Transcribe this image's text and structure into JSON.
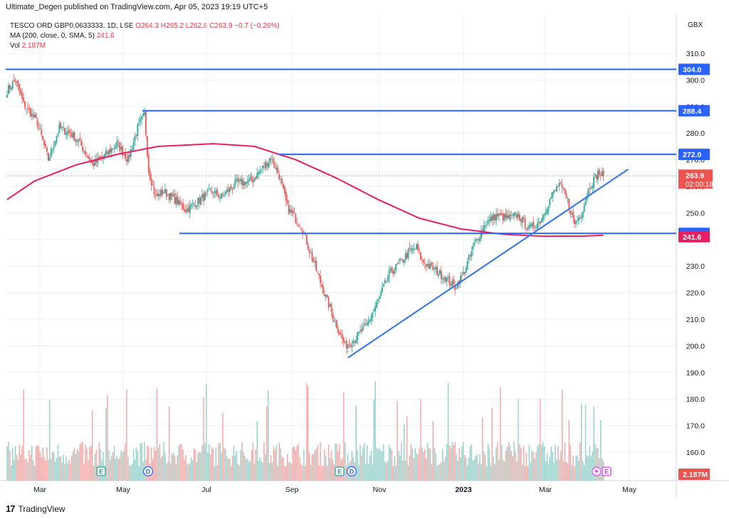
{
  "header": "Ultimate_Degen published on TradingView.com, Apr 05, 2023 19:19 UTC+5",
  "legend": {
    "symbol": "TESCO ORD GBP0.0633333, 1D, LSE",
    "ohlc": "O264.3  H265.2  L262.8  C263.9  −0.7 (−0.26%)",
    "ma_label": "MA (200, close, 0, SMA, 5)",
    "ma_value": "241.6",
    "vol_label": "Vol",
    "vol_value": "2.187M"
  },
  "currency": "GBX",
  "footer": {
    "logo": "17",
    "brand": "TradingView"
  },
  "colors": {
    "up": "#26a69a",
    "down": "#ef5350",
    "up_vol": "#8fcfc8",
    "down_vol": "#f4a3a1",
    "ma": "#e91e63",
    "hline": "#2962ff",
    "trend": "#3d7be3",
    "grid": "#eceff3"
  },
  "chart_data": {
    "type": "candlestick",
    "x_labels": [
      "Mar",
      "May",
      "Jul",
      "Sep",
      "Nov",
      "2023",
      "Mar",
      "May"
    ],
    "y_ticks": [
      "310.0",
      "300.0",
      "290.0",
      "280.0",
      "270.0",
      "260.0",
      "250.0",
      "240.0",
      "230.0",
      "220.0",
      "210.0",
      "200.0",
      "190.0",
      "180.0",
      "170.0",
      "160.0"
    ],
    "price_range": [
      155,
      316
    ],
    "horizontal_levels": [
      {
        "label": "304.0",
        "value": 304.0
      },
      {
        "label": "288.4",
        "value": 288.4
      },
      {
        "label": "272.0",
        "value": 272.0
      },
      {
        "label": "242.3",
        "value": 242.3
      }
    ],
    "last_price": {
      "label": "263.9",
      "value": 263.9,
      "countdown": "02:00:18"
    },
    "ma_price": {
      "label": "241.6",
      "value": 241.6
    },
    "volume_label": "2.187M",
    "event_markers": [
      "E",
      "D",
      "E",
      "D",
      "E"
    ],
    "anchors": [
      [
        0,
        296
      ],
      [
        6,
        300
      ],
      [
        12,
        291
      ],
      [
        22,
        284
      ],
      [
        30,
        270
      ],
      [
        38,
        282
      ],
      [
        46,
        280
      ],
      [
        52,
        277
      ],
      [
        62,
        268
      ],
      [
        72,
        272
      ],
      [
        80,
        276
      ],
      [
        88,
        270
      ],
      [
        95,
        282
      ],
      [
        100,
        287
      ],
      [
        103,
        266
      ],
      [
        108,
        256
      ],
      [
        114,
        258
      ],
      [
        122,
        255
      ],
      [
        130,
        251
      ],
      [
        138,
        254
      ],
      [
        148,
        258
      ],
      [
        156,
        256
      ],
      [
        166,
        261
      ],
      [
        178,
        262
      ],
      [
        186,
        267
      ],
      [
        192,
        271
      ],
      [
        198,
        264
      ],
      [
        204,
        252
      ],
      [
        214,
        245
      ],
      [
        222,
        233
      ],
      [
        230,
        221
      ],
      [
        238,
        210
      ],
      [
        246,
        200
      ],
      [
        254,
        203
      ],
      [
        262,
        208
      ],
      [
        270,
        217
      ],
      [
        278,
        227
      ],
      [
        286,
        231
      ],
      [
        292,
        235
      ],
      [
        298,
        237
      ],
      [
        302,
        232
      ],
      [
        310,
        229
      ],
      [
        318,
        226
      ],
      [
        326,
        222
      ],
      [
        332,
        227
      ],
      [
        340,
        238
      ],
      [
        348,
        246
      ],
      [
        356,
        249
      ],
      [
        364,
        248
      ],
      [
        372,
        249
      ],
      [
        380,
        244
      ],
      [
        388,
        247
      ],
      [
        396,
        256
      ],
      [
        402,
        261
      ],
      [
        408,
        254
      ],
      [
        413,
        246
      ],
      [
        418,
        250
      ],
      [
        424,
        260
      ],
      [
        430,
        265
      ],
      [
        434,
        264
      ]
    ],
    "ma_line": [
      [
        0,
        255
      ],
      [
        20,
        262
      ],
      [
        50,
        268
      ],
      [
        80,
        272
      ],
      [
        110,
        275
      ],
      [
        150,
        276
      ],
      [
        180,
        275
      ],
      [
        210,
        270
      ],
      [
        240,
        263
      ],
      [
        270,
        255
      ],
      [
        300,
        248
      ],
      [
        330,
        244
      ],
      [
        360,
        242
      ],
      [
        390,
        241.2
      ],
      [
        420,
        241.3
      ],
      [
        434,
        241.6
      ]
    ],
    "trend_line": [
      [
        248,
        195.5
      ],
      [
        452,
        266.4
      ]
    ]
  }
}
